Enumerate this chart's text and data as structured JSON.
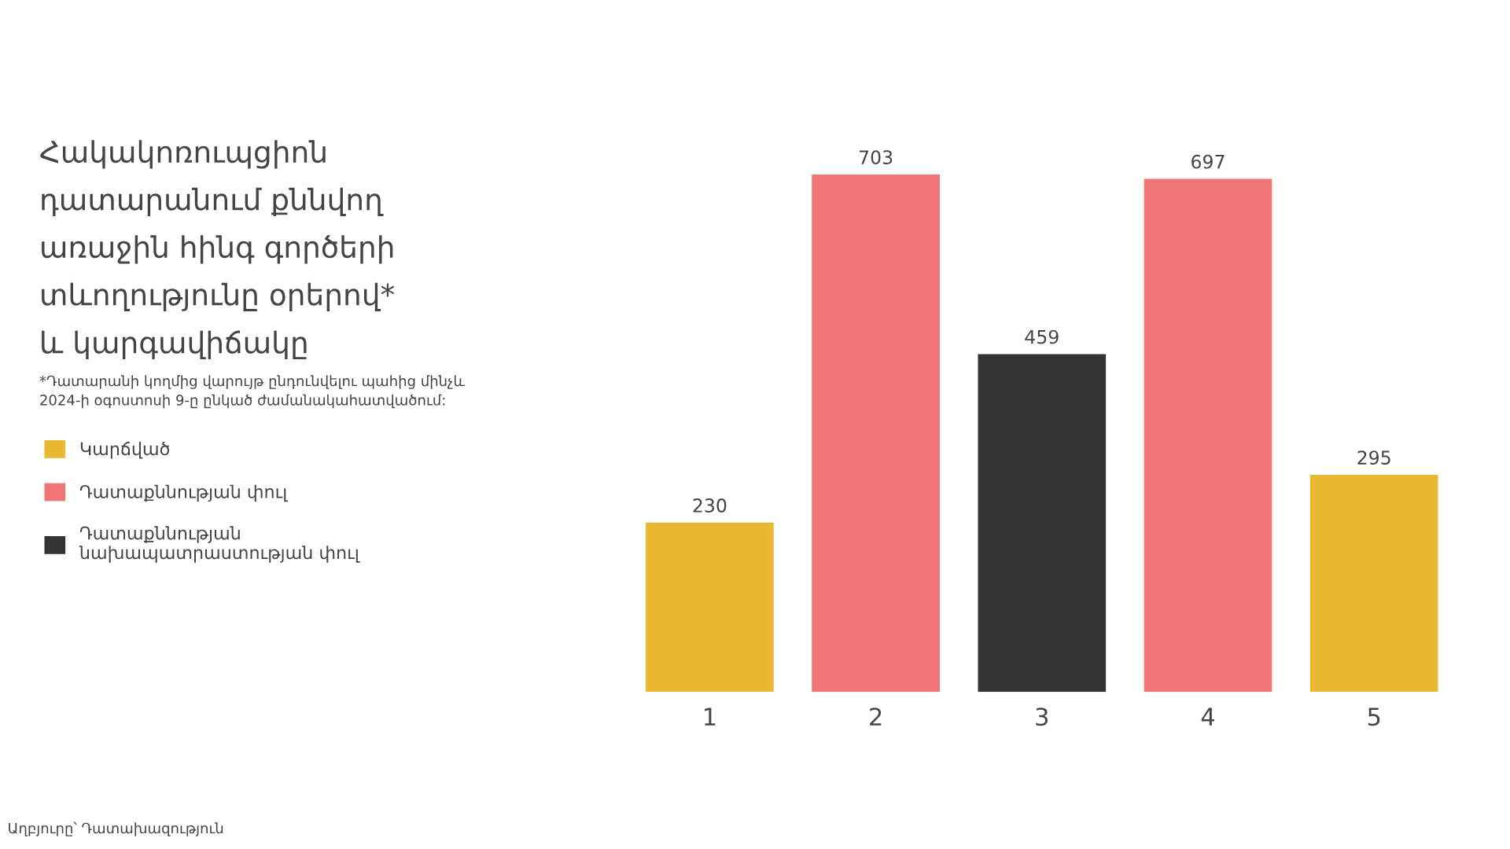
{
  "chart_data": {
    "type": "bar",
    "stacked": true,
    "title": "Հակակոռուպցիոն\nդատարանում քննվող\nառաջին հինգ գործերի\nտևողությունը օրերով*\nև կարգավիճակը",
    "categories": [
      "1",
      "2",
      "3",
      "4",
      "5"
    ],
    "series": [
      {
        "name": "Կարճված",
        "color": "#e9b931",
        "values": [
          230,
          null,
          null,
          null,
          295
        ]
      },
      {
        "name": "Դատաքննության փուլ",
        "color": "#f07575",
        "values": [
          null,
          703,
          null,
          697,
          null
        ]
      },
      {
        "name": "Դատաքննության\nնախապատրաստության փուլ",
        "color": "#333333",
        "values": [
          null,
          null,
          459,
          null,
          null
        ]
      }
    ],
    "data_labels": true,
    "legend": "left",
    "grid": false,
    "tick_labels": "x",
    "annotations": [
      "*Դատարանի կողմից վարույթ ընդունվելու պահից մինչև\n2024-ի օգոստոսի 9-ը ընկած ժամանակահատվածում:",
      "Աղբյուրը՝ Դատախազություն"
    ]
  }
}
